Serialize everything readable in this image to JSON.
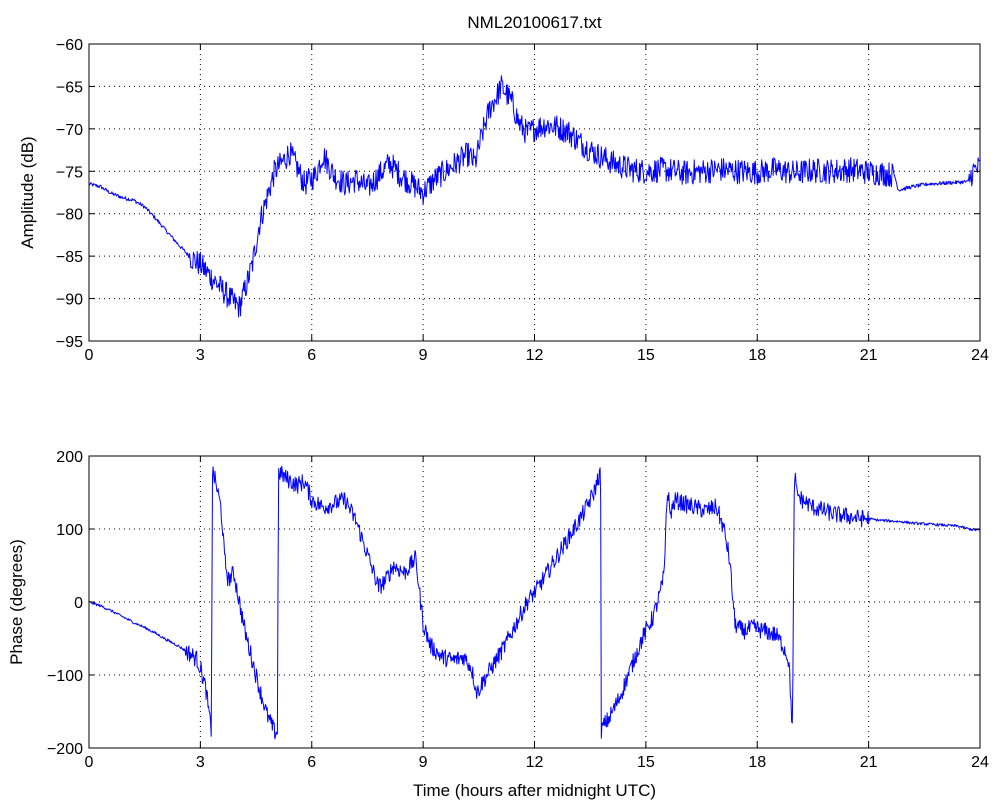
{
  "figure_title": "NML20100617.txt",
  "chart_data": [
    {
      "type": "line",
      "title": "NML20100617.txt",
      "xlabel": "",
      "ylabel": "Amplitude (dB)",
      "xlim": [
        0,
        24
      ],
      "ylim": [
        -95,
        -60
      ],
      "xticks": [
        "0",
        "3",
        "6",
        "9",
        "12",
        "15",
        "18",
        "21",
        "24"
      ],
      "yticks": [
        "-95",
        "-90",
        "-85",
        "-80",
        "-75",
        "-70",
        "-65",
        "-60"
      ],
      "grid": true,
      "color": "#0000ff",
      "noise_estimate_dB": 1.5,
      "series": [
        {
          "x": [
            0,
            0.3,
            0.6,
            0.9,
            1.2,
            1.5,
            1.8,
            2.1,
            2.4,
            2.7,
            3.0,
            3.3,
            3.6,
            3.9,
            4.05,
            4.2,
            4.4,
            4.6,
            4.8,
            5.0,
            5.2,
            5.4,
            5.6,
            5.8,
            6.1,
            6.3,
            6.6,
            6.9,
            7.2,
            7.5,
            7.8,
            8.1,
            8.4,
            8.7,
            9.0,
            9.3,
            9.6,
            9.9,
            10.2,
            10.4,
            10.6,
            10.8,
            11.0,
            11.1,
            11.2,
            11.4,
            11.6,
            11.8,
            12.0,
            12.3,
            12.6,
            12.9,
            13.2,
            13.5,
            13.8,
            14.2,
            14.6,
            15.0,
            15.5,
            16.0,
            16.5,
            17.0,
            17.5,
            18.0,
            18.5,
            19.0,
            19.5,
            20.0,
            20.5,
            21.0,
            21.5,
            21.7,
            21.8,
            22.2,
            22.6,
            23.0,
            23.4,
            23.7,
            23.8,
            24.0
          ],
          "y": [
            -76.5,
            -76.8,
            -77.6,
            -78.1,
            -78.4,
            -79.2,
            -80.6,
            -82.1,
            -83.6,
            -85.0,
            -86.0,
            -87.5,
            -89.0,
            -90.5,
            -91.0,
            -89.0,
            -86.0,
            -81.0,
            -78.0,
            -75.0,
            -74.0,
            -72.8,
            -74.5,
            -76.5,
            -75.5,
            -73.0,
            -75.5,
            -76.5,
            -76.0,
            -77.0,
            -75.5,
            -74.0,
            -75.5,
            -76.5,
            -77.5,
            -76.0,
            -75.0,
            -74.0,
            -73.0,
            -74.0,
            -70.5,
            -67.5,
            -66.0,
            -65.0,
            -65.5,
            -67.0,
            -69.5,
            -70.5,
            -70.0,
            -69.5,
            -69.8,
            -70.3,
            -71.5,
            -72.5,
            -73.3,
            -74.2,
            -74.8,
            -75.0,
            -74.8,
            -75.2,
            -75.0,
            -74.8,
            -75.0,
            -75.1,
            -74.8,
            -75.2,
            -74.9,
            -75.0,
            -74.8,
            -75.1,
            -75.3,
            -75.5,
            -77.2,
            -76.8,
            -76.5,
            -76.4,
            -76.3,
            -76.2,
            -75.0,
            -74.5
          ]
        }
      ]
    },
    {
      "type": "line",
      "title": "",
      "xlabel": "Time (hours after midnight UTC)",
      "ylabel": "Phase (degrees)",
      "xlim": [
        0,
        24
      ],
      "ylim": [
        -200,
        200
      ],
      "xticks": [
        "0",
        "3",
        "6",
        "9",
        "12",
        "15",
        "18",
        "21",
        "24"
      ],
      "yticks": [
        "-200",
        "-100",
        "0",
        "100",
        "200"
      ],
      "grid": true,
      "color": "#0000ff",
      "noise_estimate_deg": 12,
      "series": [
        {
          "x": [
            0,
            0.3,
            0.6,
            0.9,
            1.2,
            1.5,
            1.8,
            2.1,
            2.4,
            2.7,
            2.9,
            3.0,
            3.15,
            3.25,
            3.3,
            3.32,
            3.36,
            3.45,
            3.55,
            3.6,
            3.65,
            3.75,
            3.9,
            4.05,
            4.2,
            4.4,
            4.6,
            4.8,
            5.0,
            5.08,
            5.1,
            5.12,
            5.3,
            5.6,
            5.8,
            6.0,
            6.3,
            6.6,
            6.9,
            7.2,
            7.4,
            7.6,
            7.8,
            8.0,
            8.2,
            8.5,
            8.8,
            9.0,
            9.2,
            9.5,
            9.8,
            10.1,
            10.3,
            10.45,
            10.6,
            10.9,
            11.2,
            11.5,
            11.8,
            12.1,
            12.4,
            12.7,
            13.0,
            13.3,
            13.6,
            13.75,
            13.78,
            13.8,
            13.85,
            14.0,
            14.3,
            14.6,
            14.9,
            15.2,
            15.4,
            15.5,
            15.55,
            15.6,
            15.65,
            15.8,
            16.0,
            16.3,
            16.6,
            16.9,
            17.1,
            17.25,
            17.4,
            17.6,
            17.9,
            18.2,
            18.5,
            18.7,
            18.85,
            18.95,
            19.0,
            19.02,
            19.05,
            19.2,
            19.5,
            19.8,
            20.1,
            20.4,
            20.7,
            21.0,
            21.3,
            21.6,
            21.9,
            22.2,
            22.5,
            22.8,
            23.1,
            23.4,
            23.7,
            24.0
          ],
          "y": [
            0,
            -5,
            -12,
            -20,
            -28,
            -35,
            -43,
            -52,
            -60,
            -70,
            -78,
            -90,
            -120,
            -160,
            -178,
            178,
            175,
            155,
            130,
            100,
            60,
            30,
            40,
            0,
            -40,
            -80,
            -120,
            -155,
            -178,
            -178,
            178,
            178,
            170,
            160,
            165,
            140,
            130,
            135,
            140,
            110,
            80,
            50,
            20,
            30,
            50,
            40,
            60,
            -30,
            -60,
            -75,
            -80,
            -75,
            -90,
            -125,
            -110,
            -85,
            -60,
            -30,
            0,
            20,
            45,
            70,
            95,
            120,
            150,
            175,
            178,
            -175,
            -170,
            -160,
            -130,
            -90,
            -50,
            -20,
            15,
            40,
            130,
            150,
            120,
            140,
            135,
            130,
            125,
            130,
            100,
            60,
            -30,
            -40,
            -35,
            -40,
            -45,
            -60,
            -80,
            -178,
            178,
            175,
            150,
            140,
            130,
            125,
            120,
            118,
            115,
            114,
            112,
            111,
            110,
            108,
            107,
            106,
            105,
            104,
            100,
            98
          ]
        }
      ]
    }
  ]
}
